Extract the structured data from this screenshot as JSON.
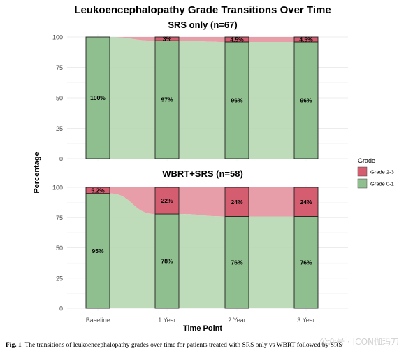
{
  "figure": {
    "title": "Leukoencephalopathy Grade Transitions Over Time",
    "caption_label": "Fig. 1",
    "caption_text": "The transitions of leukoencephalopathy grades over time for patients treated with SRS only vs WBRT followed by SRS",
    "watermark": "公众号 · ICON伽玛刀"
  },
  "colors": {
    "grade_0_1": "#8fbf8f",
    "grade_2_3": "#d45d70",
    "flow_0_1": "#b7d8b3",
    "flow_2_3": "#e5939f",
    "grid": "#e6e6e6",
    "bar_stroke": "#222222"
  },
  "chart_data": [
    {
      "type": "bar",
      "stacked": true,
      "title": "SRS only (n=67)",
      "categories": [
        "Baseline",
        "1 Year",
        "2 Year",
        "3 Year"
      ],
      "series": [
        {
          "name": "Grade 0-1",
          "values": [
            100,
            97,
            96,
            96
          ],
          "labels": [
            "100%",
            "97%",
            "96%",
            "96%"
          ]
        },
        {
          "name": "Grade 2-3",
          "values": [
            0,
            3,
            4.5,
            4.5
          ],
          "labels": [
            "",
            "3%",
            "4.5%",
            "4.5%"
          ]
        }
      ],
      "ylim": [
        0,
        100
      ],
      "yticks": [
        0,
        25,
        50,
        75,
        100
      ]
    },
    {
      "type": "bar",
      "stacked": true,
      "title": "WBRT+SRS (n=58)",
      "categories": [
        "Baseline",
        "1 Year",
        "2 Year",
        "3 Year"
      ],
      "series": [
        {
          "name": "Grade 0-1",
          "values": [
            95,
            78,
            76,
            76
          ],
          "labels": [
            "95%",
            "78%",
            "76%",
            "76%"
          ]
        },
        {
          "name": "Grade 2-3",
          "values": [
            5.2,
            22,
            24,
            24
          ],
          "labels": [
            "5.2%",
            "22%",
            "24%",
            "24%"
          ]
        }
      ],
      "ylim": [
        0,
        100
      ],
      "yticks": [
        0,
        25,
        50,
        75,
        100
      ]
    }
  ],
  "axes": {
    "xlabel": "Time Point",
    "ylabel": "Percentage"
  },
  "legend": {
    "title": "Grade",
    "placement": "right",
    "items": [
      {
        "label": "Grade 2-3",
        "color": "#d45d70"
      },
      {
        "label": "Grade 0-1",
        "color": "#8fbf8f"
      }
    ]
  }
}
